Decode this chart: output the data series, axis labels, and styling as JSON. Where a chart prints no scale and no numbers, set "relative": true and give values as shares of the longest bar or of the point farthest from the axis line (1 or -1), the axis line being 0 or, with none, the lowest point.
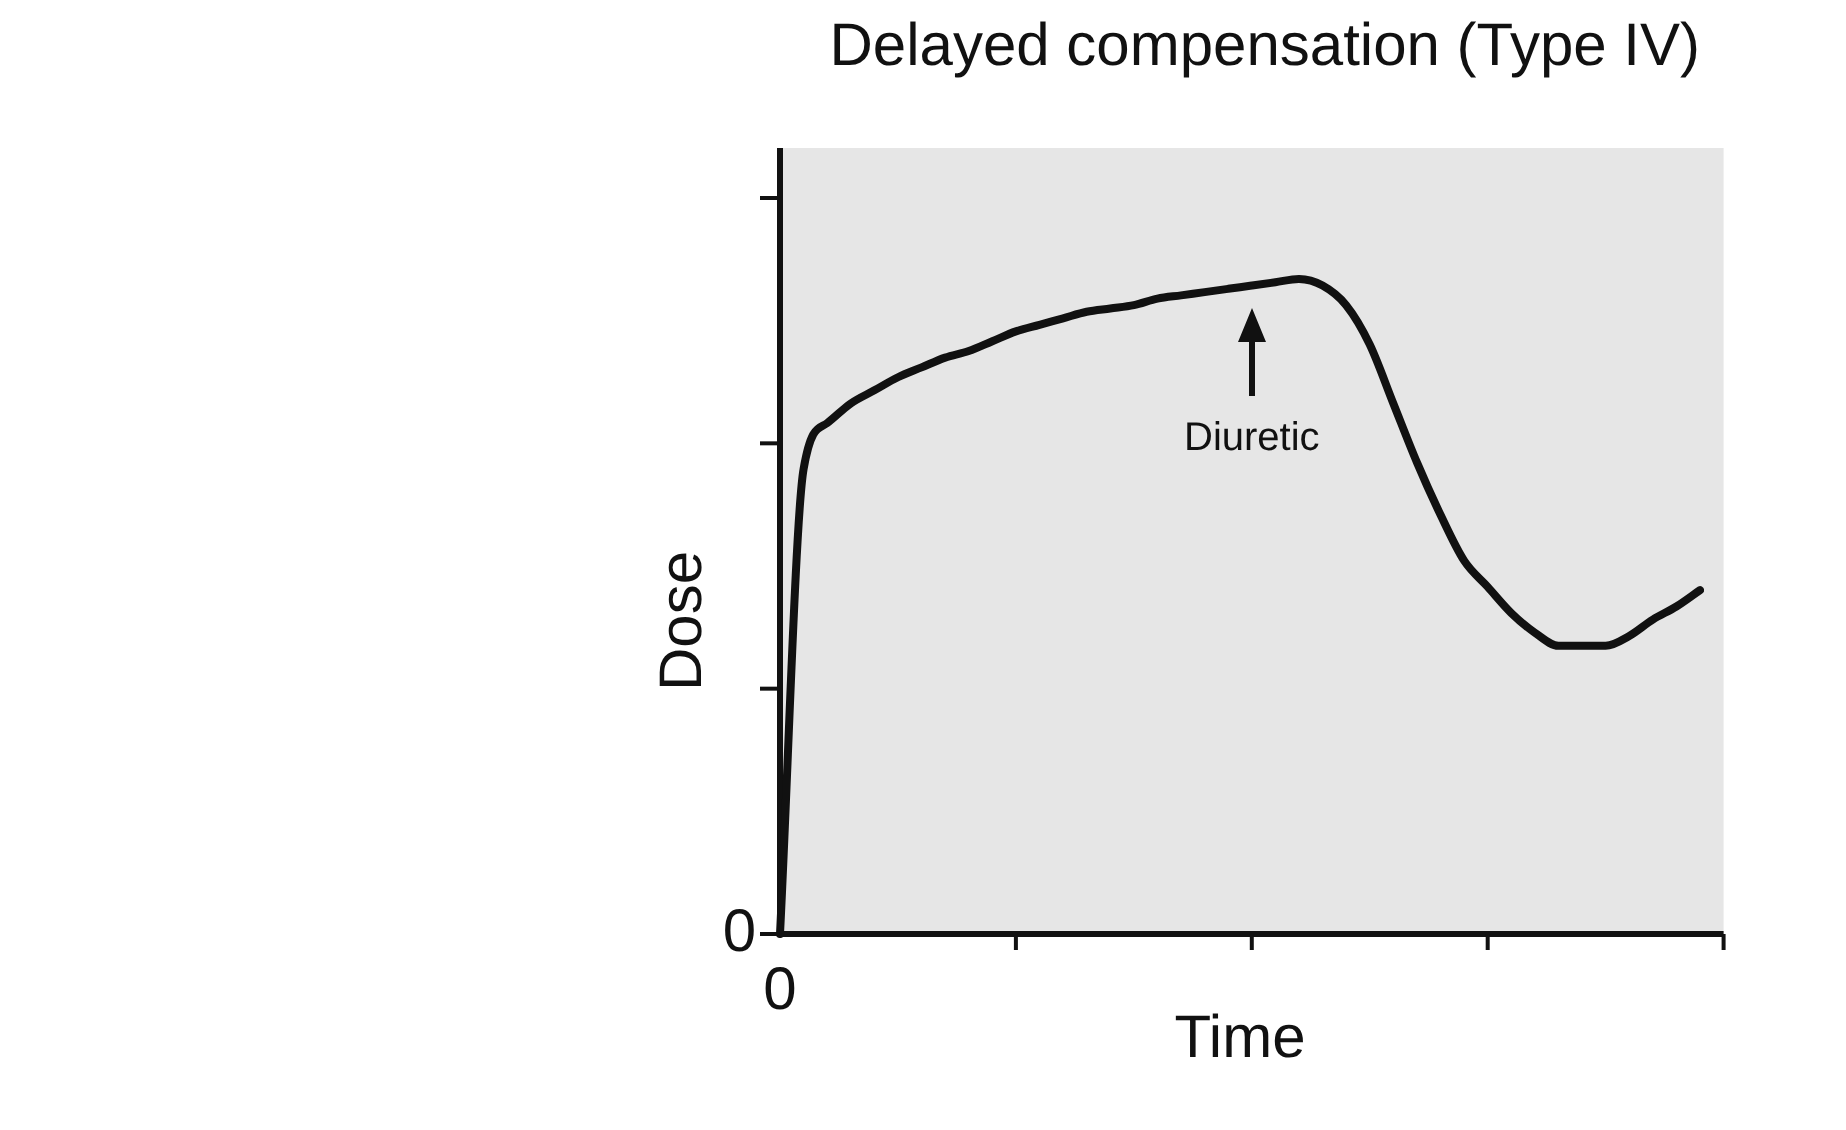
{
  "chart_data": {
    "type": "line",
    "title": "Delayed compensation (Type IV)",
    "xlabel": "Time",
    "ylabel": "Dose",
    "relative": true,
    "categories": [
      null,
      null,
      null,
      null,
      null,
      null,
      null,
      null,
      null,
      null,
      null,
      null,
      null,
      null,
      null,
      null,
      null,
      null,
      null,
      null,
      null,
      null,
      null,
      null,
      null,
      null,
      null,
      null,
      null,
      null,
      null,
      null,
      null,
      null,
      null,
      null,
      null,
      null,
      null,
      null
    ],
    "series": [
      {
        "color": "#111111",
        "values": [
          0,
          0.71,
          0.78,
          0.81,
          0.83,
          0.85,
          0.865,
          0.88,
          0.89,
          0.905,
          0.92,
          0.93,
          0.94,
          0.95,
          0.955,
          0.96,
          0.97,
          0.975,
          0.98,
          0.985,
          0.99,
          0.995,
          1.0,
          0.99,
          0.96,
          0.9,
          0.81,
          0.72,
          0.64,
          0.57,
          0.53,
          0.49,
          0.46,
          0.44,
          0.44,
          0.44,
          0.455,
          0.48,
          0.5,
          0.525
        ]
      }
    ],
    "annotations": [
      "0",
      "0",
      "Diuretic"
    ],
    "marker": "none",
    "line_style": "solid"
  }
}
